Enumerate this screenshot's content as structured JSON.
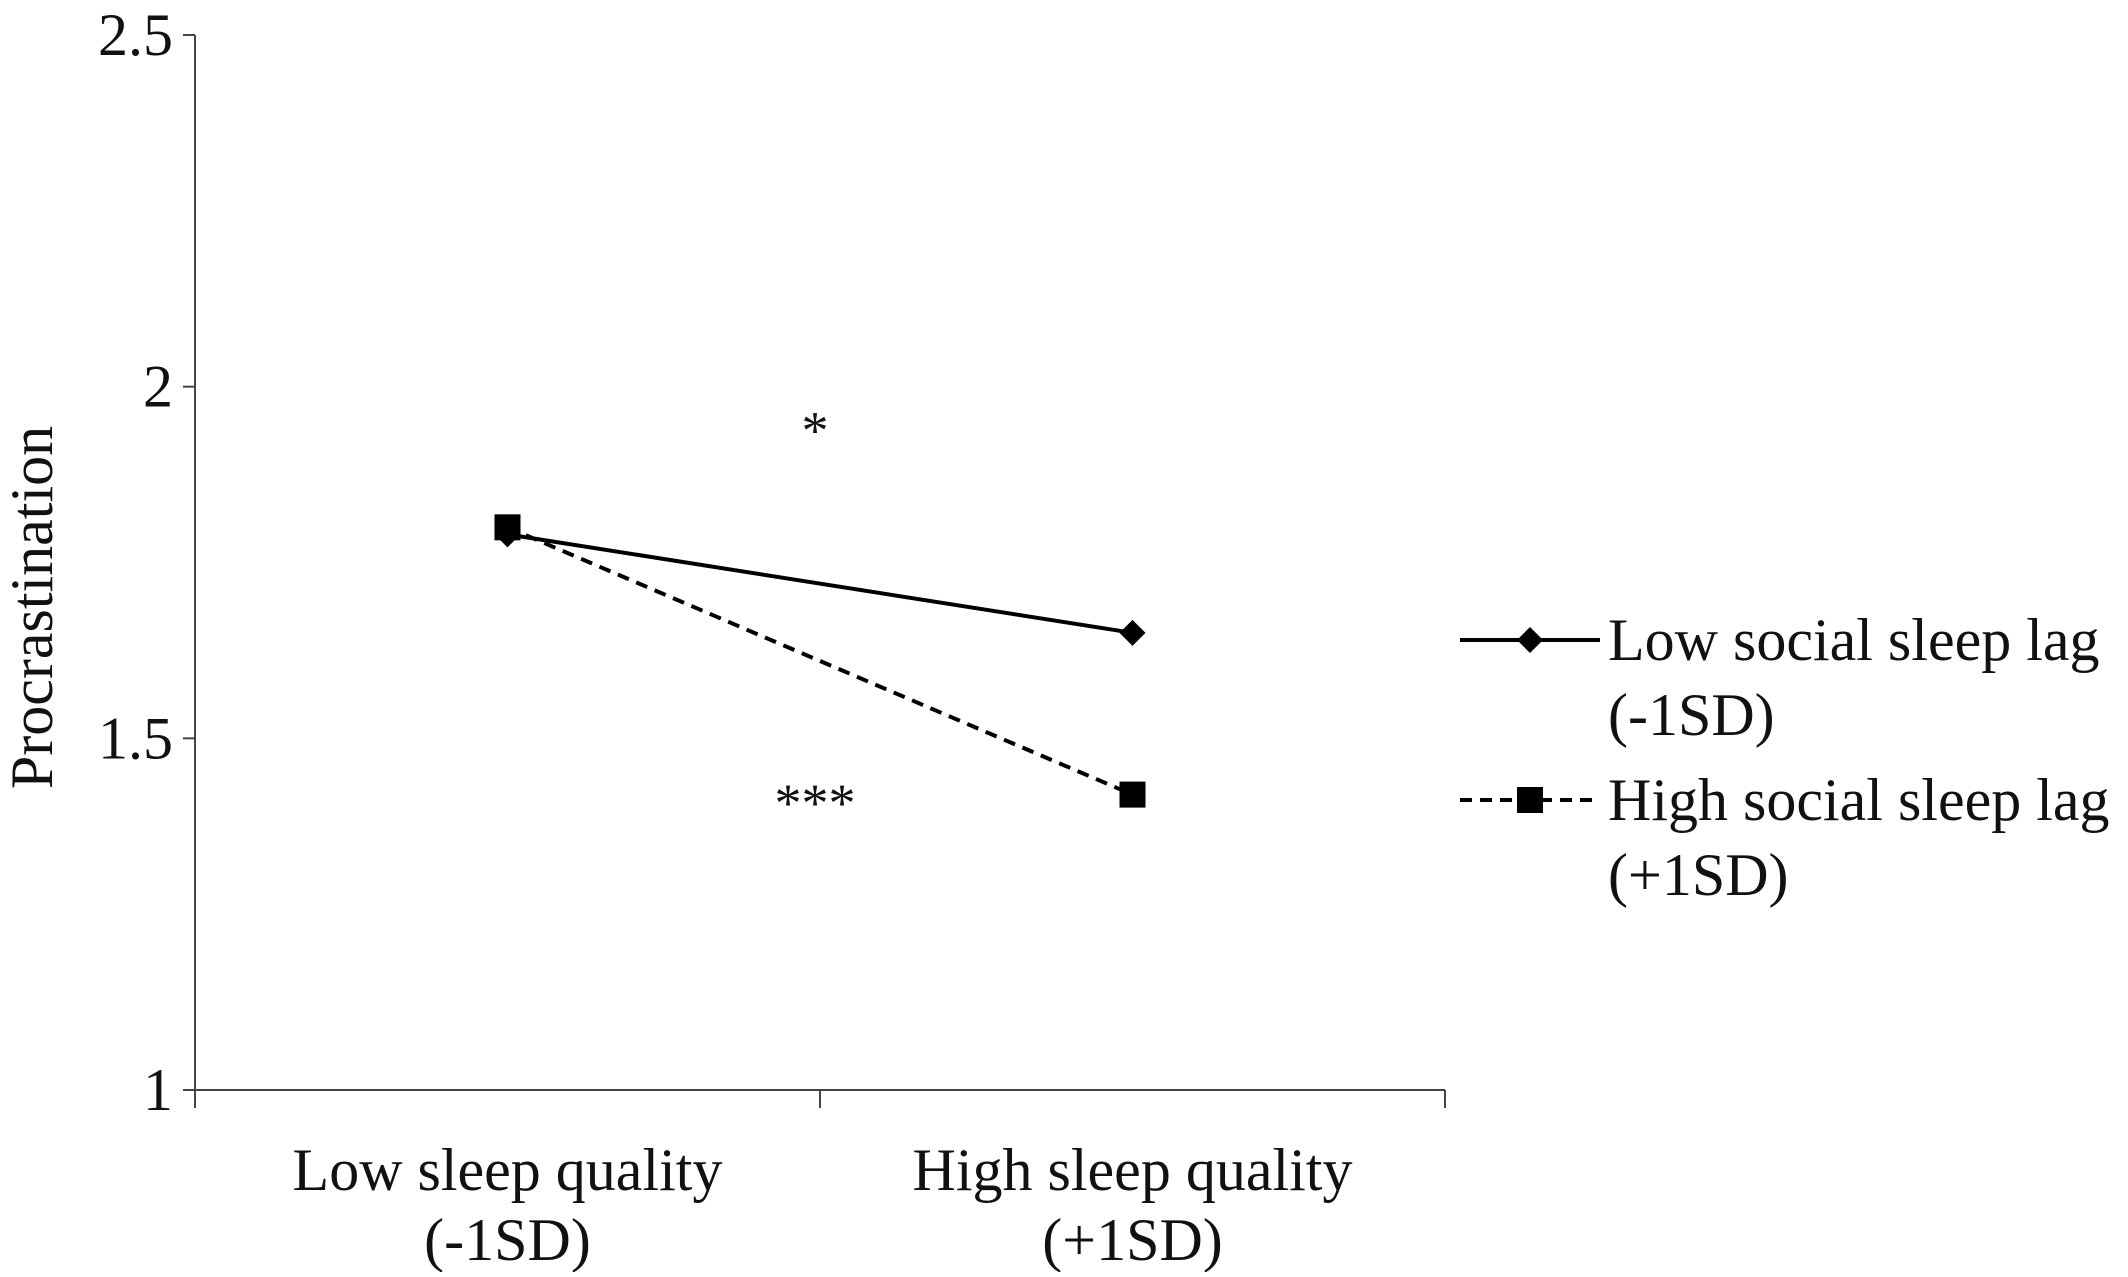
{
  "chart_data": {
    "type": "line",
    "title": "",
    "xlabel": "",
    "ylabel": "Procrastination",
    "ylim": [
      1,
      2.5
    ],
    "yticks": [
      "1",
      "1.5",
      "2",
      "2.5"
    ],
    "yticks_values": [
      1,
      1.5,
      2,
      2.5
    ],
    "grid": false,
    "legend_position": "right",
    "categories": [
      [
        "Low sleep quality",
        "(-1SD)"
      ],
      [
        "High sleep quality",
        "(+1SD)"
      ]
    ],
    "series": [
      {
        "name": [
          "Low social sleep lag",
          "(-1SD)"
        ],
        "values": [
          1.79,
          1.65
        ],
        "marker": "diamond",
        "line_style": "solid",
        "color": "#000000"
      },
      {
        "name": [
          "High social sleep lag",
          "(+1SD)"
        ],
        "values": [
          1.8,
          1.42
        ],
        "marker": "square",
        "line_style": "dashed",
        "color": "#000000"
      }
    ],
    "annotations": [
      {
        "text": "*",
        "series": 0
      },
      {
        "text": "***",
        "series": 1
      }
    ]
  }
}
